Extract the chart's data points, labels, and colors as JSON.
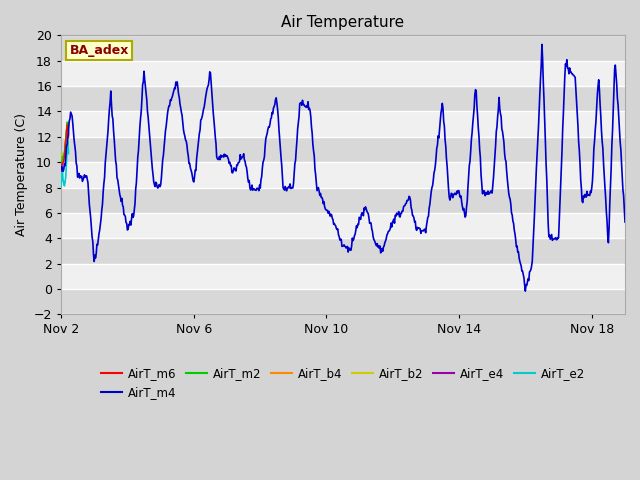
{
  "title": "Air Temperature",
  "ylabel": "Air Temperature (C)",
  "ylim": [
    -2,
    20
  ],
  "yticks": [
    -2,
    0,
    2,
    4,
    6,
    8,
    10,
    12,
    14,
    16,
    18,
    20
  ],
  "xtick_labels": [
    "Nov 2",
    "Nov 6",
    "Nov 10",
    "Nov 14",
    "Nov 18"
  ],
  "xtick_positions": [
    0,
    4,
    8,
    12,
    16
  ],
  "n_days": 17,
  "fig_bg": "#d4d4d4",
  "plot_bg": "#e8e8e8",
  "band_light": "#f0f0f0",
  "band_dark": "#d8d8d8",
  "legend_entries": [
    {
      "label": "AirT_m6",
      "color": "#ff0000"
    },
    {
      "label": "AirT_m4",
      "color": "#0000cc"
    },
    {
      "label": "AirT_m2",
      "color": "#00cc00"
    },
    {
      "label": "AirT_b4",
      "color": "#ff8800"
    },
    {
      "label": "AirT_b2",
      "color": "#cccc00"
    },
    {
      "label": "AirT_e4",
      "color": "#9900aa"
    },
    {
      "label": "AirT_e2",
      "color": "#00cccc"
    }
  ],
  "annotation_text": "BA_adex",
  "annotation_color": "#8b0000",
  "annotation_bg": "#ffffcc",
  "annotation_border": "#aaaa00",
  "m4_keypoints_x": [
    0,
    0.1,
    0.3,
    0.5,
    0.8,
    1.0,
    1.2,
    1.5,
    1.7,
    2.0,
    2.2,
    2.5,
    2.8,
    3.0,
    3.2,
    3.5,
    3.7,
    4.0,
    4.2,
    4.5,
    4.7,
    5.0,
    5.2,
    5.5,
    5.7,
    6.0,
    6.2,
    6.5,
    6.7,
    7.0,
    7.2,
    7.5,
    7.7,
    8.0,
    8.2,
    8.5,
    8.7,
    9.0,
    9.2,
    9.5,
    9.7,
    10.0,
    10.2,
    10.5,
    10.7,
    11.0,
    11.2,
    11.5,
    11.7,
    12.0,
    12.2,
    12.5,
    12.7,
    13.0,
    13.2,
    13.5,
    13.7,
    14.0,
    14.2,
    14.5,
    14.7,
    15.0,
    15.2,
    15.5,
    15.7,
    16.0,
    16.2,
    16.5,
    16.7,
    17.0
  ],
  "m4_keypoints_y": [
    9.5,
    9.5,
    14.2,
    9.0,
    8.8,
    2.0,
    5.0,
    15.5,
    8.5,
    4.8,
    5.8,
    17.3,
    8.2,
    8.0,
    13.9,
    16.4,
    12.5,
    8.3,
    12.8,
    17.1,
    10.4,
    10.5,
    9.2,
    10.6,
    8.0,
    8.0,
    12.1,
    15.1,
    8.0,
    8.0,
    14.7,
    14.4,
    8.2,
    6.3,
    5.5,
    3.4,
    3.1,
    5.5,
    6.4,
    3.4,
    3.0,
    5.5,
    5.8,
    7.2,
    4.8,
    4.6,
    8.1,
    14.8,
    7.2,
    7.6,
    5.6,
    16.1,
    7.5,
    7.6,
    15.1,
    7.6,
    4.0,
    0.0,
    1.8,
    19.3,
    4.0,
    4.0,
    17.7,
    16.7,
    7.0,
    8.0,
    16.8,
    3.5,
    18.3,
    5.3
  ]
}
